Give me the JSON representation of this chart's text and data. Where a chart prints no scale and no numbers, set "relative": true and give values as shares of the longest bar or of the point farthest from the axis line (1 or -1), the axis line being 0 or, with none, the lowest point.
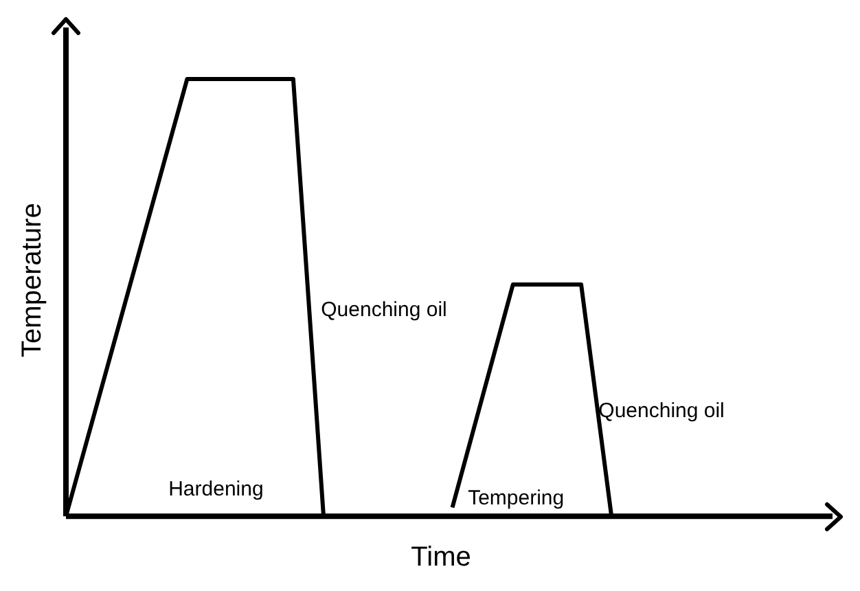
{
  "chart_data": {
    "type": "line",
    "xlabel": "Time",
    "ylabel": "Temperature",
    "relative": true,
    "legend": false,
    "marker": "none",
    "line_style": "solid",
    "categories": [
      null,
      null,
      null,
      null,
      null,
      null,
      null,
      null,
      null,
      null,
      null,
      null,
      null,
      null,
      null,
      null,
      null,
      null,
      null,
      null,
      null,
      null,
      null,
      null,
      null,
      null,
      null,
      null,
      null,
      null,
      null,
      null,
      null,
      null,
      null,
      null,
      null,
      null,
      null,
      null,
      null,
      null,
      null,
      null,
      null,
      null,
      null,
      null,
      null,
      null,
      null,
      null,
      null,
      null,
      null,
      null,
      null,
      null,
      null,
      null,
      null,
      null,
      null,
      null,
      null,
      null,
      null,
      null,
      null,
      null,
      null,
      null,
      null,
      null,
      null,
      null,
      null,
      null,
      null,
      null,
      null,
      null,
      null,
      null,
      null,
      null,
      null,
      null,
      null,
      null,
      null,
      null,
      null,
      null,
      null,
      null,
      null,
      null,
      null,
      null
    ],
    "series": [
      {
        "color": "#000000",
        "values": [
          0,
          null,
          null,
          null,
          null,
          null,
          null,
          null,
          null,
          null,
          null,
          null,
          null,
          null,
          null,
          null,
          1,
          null,
          null,
          null,
          null,
          null,
          null,
          null,
          null,
          null,
          null,
          null,
          null,
          null,
          1,
          null,
          null,
          null,
          0,
          null,
          null,
          null,
          null,
          null,
          null,
          null,
          null,
          null,
          null,
          null,
          null,
          null,
          null,
          null,
          null,
          null,
          null,
          null,
          null,
          null,
          null,
          null,
          null,
          null,
          null,
          null,
          null,
          null,
          null,
          null,
          null,
          null,
          null,
          null,
          null,
          null,
          null,
          null,
          null,
          null,
          null,
          null,
          null,
          null,
          null,
          null,
          null,
          null,
          null,
          null,
          null,
          null,
          null,
          null,
          null,
          null,
          null,
          null,
          null,
          null,
          null,
          null,
          null,
          null
        ]
      },
      {
        "color": "#000000",
        "values": [
          null,
          null,
          null,
          null,
          null,
          null,
          null,
          null,
          null,
          null,
          null,
          null,
          null,
          null,
          null,
          null,
          null,
          null,
          null,
          null,
          null,
          null,
          null,
          null,
          null,
          null,
          null,
          null,
          null,
          null,
          null,
          null,
          null,
          null,
          null,
          null,
          null,
          null,
          null,
          null,
          null,
          null,
          null,
          null,
          null,
          null,
          null,
          null,
          null,
          null,
          null,
          0.02,
          null,
          null,
          null,
          null,
          null,
          null,
          null,
          0.53,
          null,
          null,
          null,
          null,
          null,
          null,
          null,
          null,
          0.53,
          null,
          null,
          null,
          0,
          null,
          null,
          null,
          null,
          null,
          null,
          null,
          null,
          null,
          null,
          null,
          null,
          null,
          null,
          null,
          null,
          null,
          null,
          null,
          null,
          null,
          null,
          null,
          null,
          null,
          null,
          null
        ]
      }
    ],
    "annotations": [
      "Hardening",
      "Quenching oil",
      "Tempering",
      "Quenching oil"
    ]
  }
}
